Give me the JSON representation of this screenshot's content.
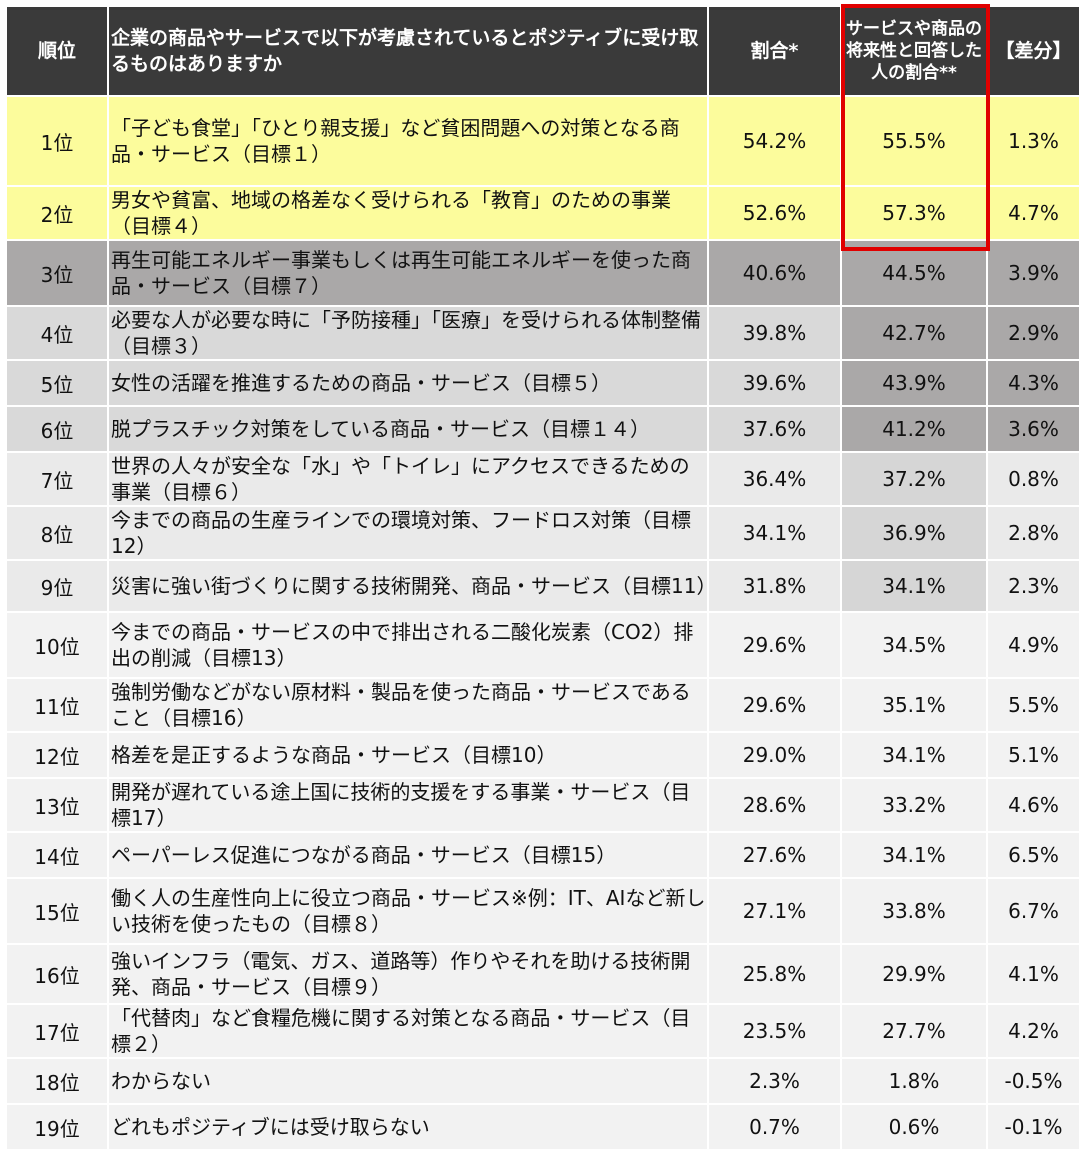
{
  "chart_data": {
    "type": "table",
    "columns": [
      "順位",
      "企業の商品やサービスで以下が考慮されているとポジティブに受け取るものはありますか",
      "割合*",
      "サービスや商品の将来性と回答した人の割合**",
      "【差分】"
    ],
    "rows": [
      {
        "rank": "1位",
        "item": "「子ども食堂」「ひとり親支援」など貧困問題への対策となる商品・サービス（目標１）",
        "ratio": "54.2%",
        "future": "55.5%",
        "diff": "1.3%"
      },
      {
        "rank": "2位",
        "item": "男女や貧富、地域の格差なく受けられる「教育」のための事業（目標４）",
        "ratio": "52.6%",
        "future": "57.3%",
        "diff": "4.7%"
      },
      {
        "rank": "3位",
        "item": "再生可能エネルギー事業もしくは再生可能エネルギーを使った商品・サービス（目標７）",
        "ratio": "40.6%",
        "future": "44.5%",
        "diff": "3.9%"
      },
      {
        "rank": "4位",
        "item": " 必要な人が必要な時に「予防接種」「医療」を受けられる体制整備（目標３）",
        "ratio": "39.8%",
        "future": "42.7%",
        "diff": "2.9%"
      },
      {
        "rank": "5位",
        "item": "女性の活躍を推進するための商品・サービス（目標５）",
        "ratio": "39.6%",
        "future": "43.9%",
        "diff": "4.3%"
      },
      {
        "rank": "6位",
        "item": "脱プラスチック対策をしている商品・サービス（目標１４）",
        "ratio": "37.6%",
        "future": "41.2%",
        "diff": "3.6%"
      },
      {
        "rank": "7位",
        "item": "世界の人々が安全な「水」や「トイレ」にアクセスできるための事業（目標６）",
        "ratio": "36.4%",
        "future": "37.2%",
        "diff": "0.8%"
      },
      {
        "rank": "8位",
        "item": "今までの商品の生産ラインでの環境対策、フードロス対策（目標12）",
        "ratio": "34.1%",
        "future": "36.9%",
        "diff": "2.8%"
      },
      {
        "rank": "9位",
        "item": "災害に強い街づくりに関する技術開発、商品・サービス（目標11）",
        "ratio": "31.8%",
        "future": "34.1%",
        "diff": "2.3%"
      },
      {
        "rank": "10位",
        "item": "今までの商品・サービスの中で排出される二酸化炭素（CO2）排出の削減（目標13）",
        "ratio": "29.6%",
        "future": "34.5%",
        "diff": "4.9%"
      },
      {
        "rank": "11位",
        "item": "強制労働などがない原材料・製品を使った商品・サービスであること（目標16）",
        "ratio": "29.6%",
        "future": "35.1%",
        "diff": "5.5%"
      },
      {
        "rank": "12位",
        "item": "格差を是正するような商品・サービス（目標10）",
        "ratio": "29.0%",
        "future": "34.1%",
        "diff": "5.1%"
      },
      {
        "rank": "13位",
        "item": "開発が遅れている途上国に技術的支援をする事業・サービス（目標17）",
        "ratio": "28.6%",
        "future": "33.2%",
        "diff": "4.6%"
      },
      {
        "rank": "14位",
        "item": "ペーパーレス促進につながる商品・サービス（目標15）",
        "ratio": "27.6%",
        "future": "34.1%",
        "diff": "6.5%"
      },
      {
        "rank": "15位",
        "item": "働く人の生産性向上に役立つ商品・サービス※例：IT、AIなど新しい技術を使ったもの（目標８）",
        "ratio": "27.1%",
        "future": "33.8%",
        "diff": "6.7%"
      },
      {
        "rank": "16位",
        "item": "強いインフラ（電気、ガス、道路等）作りやそれを助ける技術開発、商品・サービス（目標９）",
        "ratio": "25.8%",
        "future": "29.9%",
        "diff": "4.1%"
      },
      {
        "rank": "17位",
        "item": "「代替肉」など食糧危機に関する対策となる商品・サービス（目標２）",
        "ratio": "23.5%",
        "future": "27.7%",
        "diff": "4.2%"
      },
      {
        "rank": "18位",
        "item": "わからない",
        "ratio": "2.3%",
        "future": "1.8%",
        "diff": "-0.5%"
      },
      {
        "rank": "19位",
        "item": "どれもポジティブには受け取らない",
        "ratio": "0.7%",
        "future": "0.6%",
        "diff": "-0.1%"
      }
    ]
  },
  "colors": {
    "header_bg": "#3a3a3a",
    "highlight_yellow": "#fcfc9c",
    "dark_gray": "#aaa8a8",
    "mid_gray": "#d9d9d9",
    "light_gray": "#eaeaea",
    "near_white": "#f2f2f2",
    "red_frame": "#e00000"
  }
}
